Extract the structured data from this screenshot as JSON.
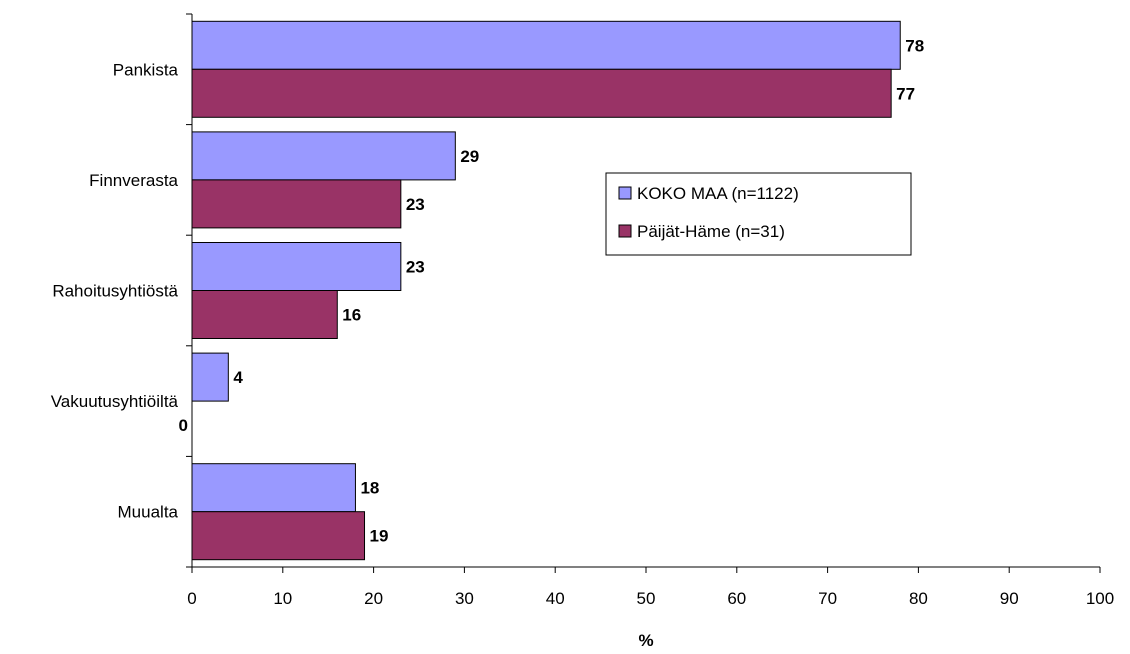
{
  "chart_data": {
    "type": "bar",
    "orientation": "horizontal",
    "categories": [
      "Pankista",
      "Finnverasta",
      "Rahoitusyhtiöstä",
      "Vakuutusyhtiöiltä",
      "Muualta"
    ],
    "series": [
      {
        "name": "KOKO MAA (n=1122)",
        "values": [
          78,
          29,
          23,
          4,
          18
        ],
        "color": "#9999ff"
      },
      {
        "name": "Päijät-Häme (n=31)",
        "values": [
          77,
          23,
          16,
          0,
          19
        ],
        "color": "#993366"
      }
    ],
    "xlabel": "%",
    "ylabel": "",
    "xlim": [
      0,
      100
    ],
    "xticks": [
      0,
      10,
      20,
      30,
      40,
      50,
      60,
      70,
      80,
      90,
      100
    ],
    "grid": false,
    "legend_position": "right-middle",
    "data_labels": true
  }
}
